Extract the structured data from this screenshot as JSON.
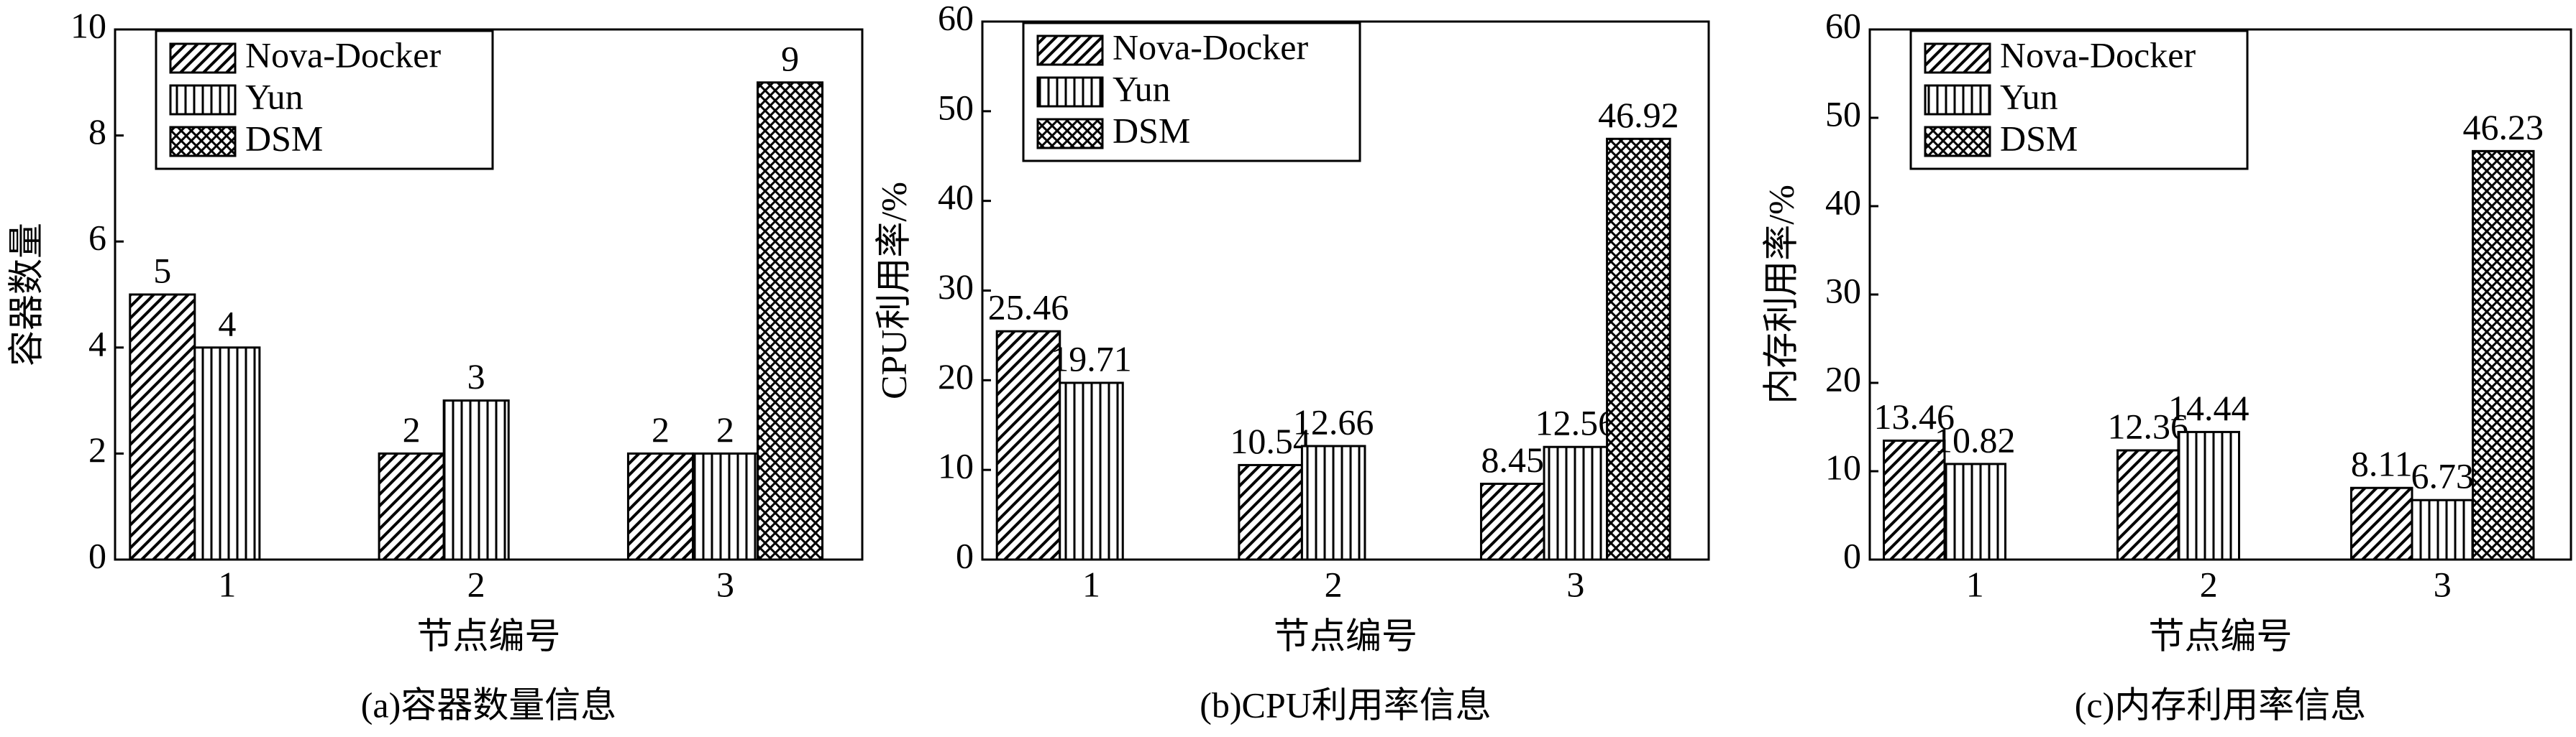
{
  "chart_data": [
    {
      "type": "bar",
      "title": "(a)容器数量信息",
      "xlabel": "节点编号",
      "ylabel": "容器数量",
      "categories": [
        "1",
        "2",
        "3"
      ],
      "series": [
        {
          "name": "Nova-Docker",
          "color": "#000000",
          "hatch": "diagonal",
          "values": [
            5,
            2,
            2
          ]
        },
        {
          "name": "Yun",
          "color": "#000000",
          "hatch": "vertical",
          "values": [
            4,
            3,
            2
          ]
        },
        {
          "name": "DSM",
          "color": "#000000",
          "hatch": "cross",
          "values": [
            null,
            null,
            9
          ]
        }
      ],
      "ylim": [
        0,
        10
      ],
      "yticks": [
        0,
        2,
        4,
        6,
        8,
        10
      ],
      "legend": "upper left"
    },
    {
      "type": "bar",
      "title": "(b)CPU利用率信息",
      "xlabel": "节点编号",
      "ylabel": "CPU利用率/%",
      "categories": [
        "1",
        "2",
        "3"
      ],
      "series": [
        {
          "name": "Nova-Docker",
          "color": "#000000",
          "hatch": "diagonal",
          "values": [
            25.46,
            10.54,
            8.45
          ]
        },
        {
          "name": "Yun",
          "color": "#000000",
          "hatch": "vertical",
          "values": [
            19.71,
            12.66,
            12.56
          ]
        },
        {
          "name": "DSM",
          "color": "#000000",
          "hatch": "cross",
          "values": [
            null,
            null,
            46.92
          ]
        }
      ],
      "ylim": [
        0,
        60
      ],
      "yticks": [
        0,
        10,
        20,
        30,
        40,
        50,
        60
      ],
      "legend": "upper left"
    },
    {
      "type": "bar",
      "title": "(c)内存利用率信息",
      "xlabel": "节点编号",
      "ylabel": "内存利用率/%",
      "categories": [
        "1",
        "2",
        "3"
      ],
      "series": [
        {
          "name": "Nova-Docker",
          "color": "#000000",
          "hatch": "diagonal",
          "values": [
            13.46,
            12.36,
            8.11
          ]
        },
        {
          "name": "Yun",
          "color": "#000000",
          "hatch": "vertical",
          "values": [
            10.82,
            14.44,
            6.73
          ]
        },
        {
          "name": "DSM",
          "color": "#000000",
          "hatch": "cross",
          "values": [
            null,
            null,
            46.23
          ]
        }
      ],
      "ylim": [
        0,
        60
      ],
      "yticks": [
        0,
        10,
        20,
        30,
        40,
        50,
        60
      ],
      "legend": "upper left"
    }
  ]
}
